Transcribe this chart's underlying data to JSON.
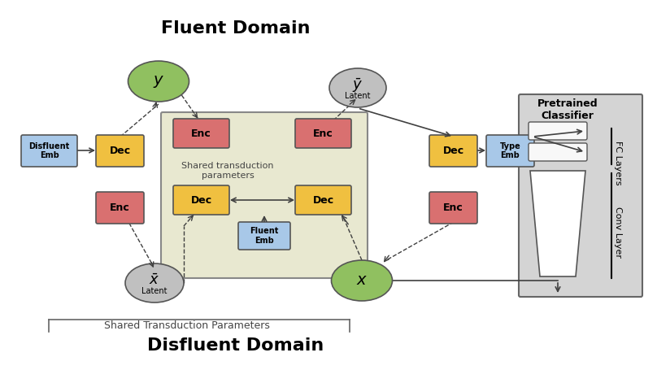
{
  "title_fluent": "Fluent Domain",
  "title_disfluent": "Disfluent Domain",
  "shared_label": "Shared Transduction Parameters",
  "pretrained_label": "Pretrained\nClassifier",
  "shared_inner_label": "Shared transduction\nparameters",
  "fc_layers_label": "FC Layers",
  "conv_layer_label": "Conv Layer",
  "bg_color": "#ffffff",
  "box_yellow": "#f0c040",
  "box_red": "#d97070",
  "box_blue": "#8ab4d4",
  "box_lightblue": "#a8c8e8",
  "ellipse_green": "#90c060",
  "ellipse_gray": "#c0c0c0",
  "box_inner_bg": "#e8e8d0",
  "pretrained_bg": "#d8d8d8",
  "arrow_color": "#404040",
  "dashed_color": "#404040"
}
